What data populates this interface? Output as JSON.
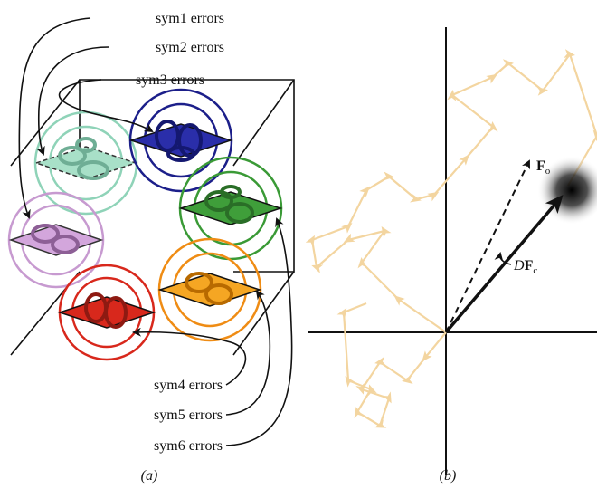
{
  "panel_a": {
    "label": "(a)",
    "callouts": [
      "sym1 errors",
      "sym2 errors",
      "sym3 errors",
      "sym4 errors",
      "sym5 errors",
      "sym6 errors"
    ]
  },
  "panel_b": {
    "label": "(b)",
    "fo": {
      "symbol": "F",
      "subscript": "o"
    },
    "dfc": {
      "prefix": "D",
      "symbol": "F",
      "subscript": "c"
    }
  }
}
